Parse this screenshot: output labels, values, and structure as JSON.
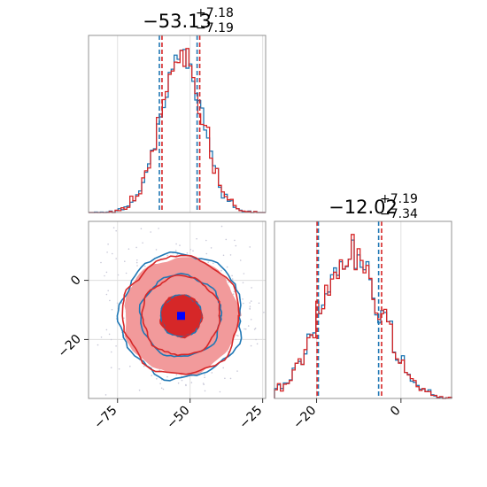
{
  "colors": {
    "series_a": "#1f77b4",
    "series_b": "#d62728",
    "contour_fill_outer": "#f29a9b",
    "contour_fill_inner": "#d62728",
    "marker": "#0000ff",
    "grid": "#d9d9d9",
    "axes": "#888888",
    "scatter": "#c8c8d8"
  },
  "chart_data": [
    {
      "type": "histogram",
      "panel": "param1-marginal",
      "title_value": "−53.13",
      "title_plus": "+7.18",
      "title_minus": "−7.19",
      "xlim": [
        -85,
        -24
      ],
      "center": -53.13,
      "sigma": 7.18,
      "series_a_quantiles": [
        -60.6,
        -47.6
      ],
      "series_b_quantiles": [
        -59.7,
        -46.7
      ],
      "grid": true
    },
    {
      "type": "histogram",
      "panel": "param2-marginal",
      "title_value": "−12.02",
      "title_plus": "+7.19",
      "title_minus": "−7.34",
      "xlim": [
        -30,
        12
      ],
      "center": -12.02,
      "sigma": 7.2,
      "series_a_quantiles": [
        -19.6,
        -5.3
      ],
      "series_b_quantiles": [
        -19.9,
        -4.6
      ],
      "xticks": [
        -20,
        0
      ],
      "xtick_labels": [
        "−20",
        "0"
      ],
      "grid": true
    },
    {
      "type": "contour",
      "panel": "joint",
      "xlim": [
        -85,
        -24
      ],
      "ylim": [
        -40,
        20
      ],
      "xticks": [
        -75,
        -50,
        -25
      ],
      "xtick_labels": [
        "−75",
        "−50",
        "−25"
      ],
      "yticks": [
        0,
        -20
      ],
      "ytick_labels": [
        "0",
        "−20"
      ],
      "center": [
        -53.13,
        -12.02
      ],
      "sigma": [
        7.18,
        7.2
      ],
      "levels_sigma": [
        1,
        2,
        3
      ],
      "marker": [
        -53.13,
        -12.02
      ],
      "grid": true
    }
  ]
}
